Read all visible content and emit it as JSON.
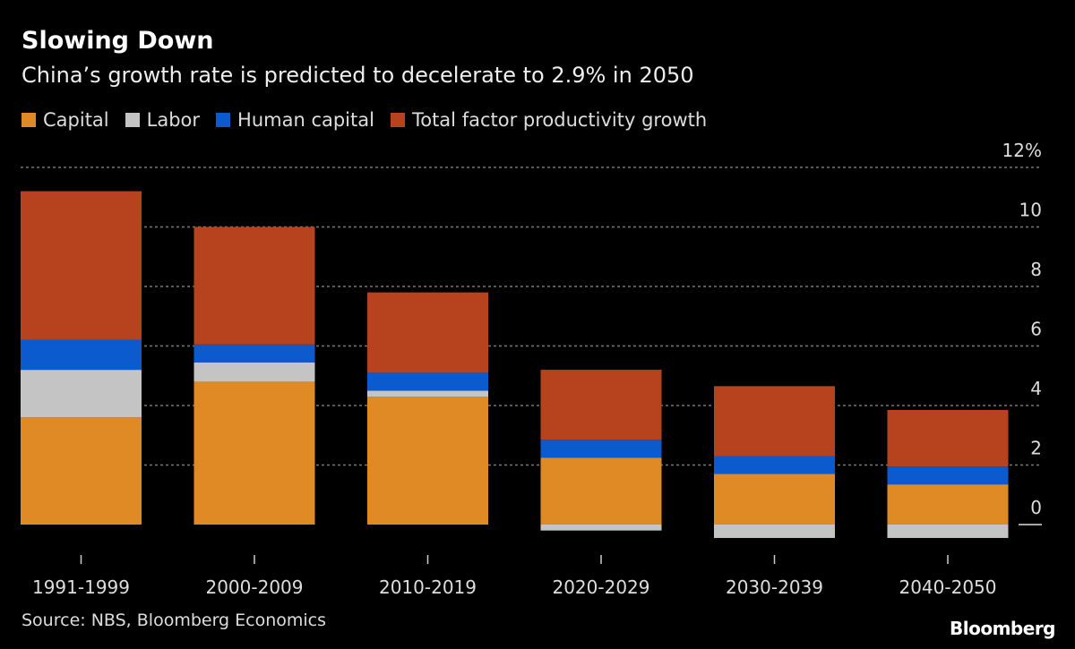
{
  "chart_data": {
    "type": "bar",
    "stacked": true,
    "title": "Slowing Down",
    "subtitle": "China’s growth rate is predicted to decelerate to 2.9% in 2050",
    "categories": [
      "1991-1999",
      "2000-2009",
      "2010-2019",
      "2020-2029",
      "2030-2039",
      "2040-2050"
    ],
    "series": [
      {
        "name": "Capital",
        "color": "#e08a26",
        "values": [
          3.6,
          4.8,
          4.3,
          2.25,
          1.7,
          1.35
        ]
      },
      {
        "name": "Labor",
        "color": "#c4c4c4",
        "values": [
          1.6,
          0.65,
          0.2,
          -0.2,
          -0.45,
          -0.45
        ]
      },
      {
        "name": "Human capital",
        "color": "#0b5bcf",
        "values": [
          1.0,
          0.6,
          0.6,
          0.6,
          0.6,
          0.6
        ]
      },
      {
        "name": "Total factor productivity growth",
        "color": "#b6431e",
        "values": [
          5.0,
          3.95,
          2.7,
          2.35,
          2.35,
          1.9
        ]
      }
    ],
    "ylim": [
      -0.5,
      12
    ],
    "yticks": [
      {
        "v": 12,
        "label": "12%"
      },
      {
        "v": 10,
        "label": "10"
      },
      {
        "v": 8,
        "label": "8"
      },
      {
        "v": 6,
        "label": "6"
      },
      {
        "v": 4,
        "label": "4"
      },
      {
        "v": 2,
        "label": "2"
      },
      {
        "v": 0,
        "label": "0"
      }
    ],
    "grid": true,
    "legend_position": "top-left",
    "source": "Source: NBS, Bloomberg Economics",
    "logo": "Bloomberg"
  }
}
